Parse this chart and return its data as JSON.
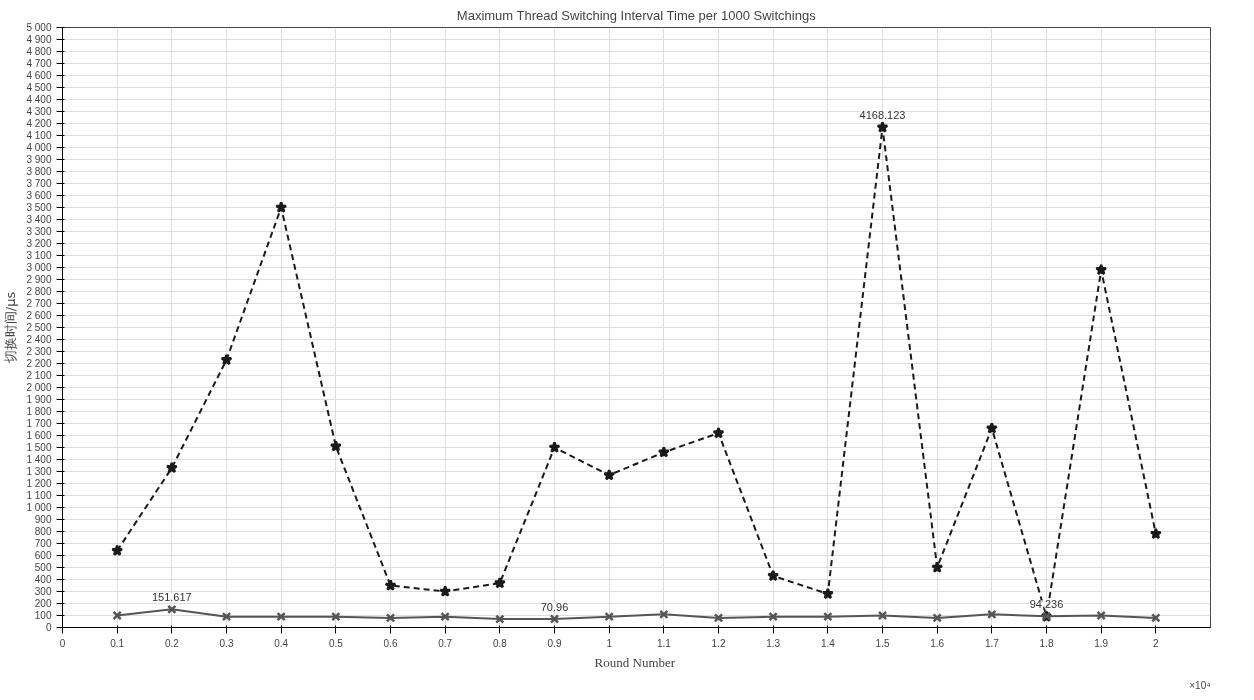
{
  "chart_data": {
    "type": "line",
    "title": "Maximum Thread Switching Interval Time per 1000 Switchings",
    "xlabel": "Round  Number",
    "ylabel": "切换时间/μs",
    "x": [
      0.1,
      0.2,
      0.3,
      0.4,
      0.5,
      0.6,
      0.7,
      0.8,
      0.9,
      1,
      1.1,
      1.2,
      1.3,
      1.4,
      1.5,
      1.6,
      1.7,
      1.8,
      1.9,
      2
    ],
    "series": [
      {
        "color": "#1a1a1a",
        "line_style": "dashed",
        "marker": "star",
        "values": [
          640,
          1330,
          2230,
          3500,
          1510,
          350,
          300,
          370,
          1500,
          1270,
          1460,
          1620,
          430,
          280,
          4168.123,
          500,
          1660,
          90,
          2980,
          780
        ],
        "value_labels": [
          null,
          null,
          null,
          null,
          null,
          null,
          null,
          null,
          null,
          null,
          null,
          null,
          null,
          null,
          "4168.123",
          null,
          null,
          null,
          null,
          null
        ]
      },
      {
        "color": "#555555",
        "line_style": "solid",
        "marker": "cross",
        "values": [
          100,
          151.617,
          90,
          90,
          90,
          80,
          90,
          70,
          70.96,
          90,
          110,
          80,
          90,
          90,
          100,
          80,
          110,
          94.236,
          100,
          80
        ],
        "value_labels": [
          null,
          "151.617",
          null,
          null,
          null,
          null,
          null,
          null,
          "70.96",
          null,
          null,
          null,
          null,
          null,
          null,
          null,
          null,
          "94.236",
          null,
          null
        ]
      }
    ],
    "xlim": [
      0,
      2.1
    ],
    "xticks": [
      0,
      0.1,
      0.2,
      0.3,
      0.4,
      0.5,
      0.6,
      0.7,
      0.8,
      0.9,
      1,
      1.1,
      1.2,
      1.3,
      1.4,
      1.5,
      1.6,
      1.7,
      1.8,
      1.9,
      2
    ],
    "annotations": [
      "×10⁴"
    ],
    "ylim": [
      0,
      5000
    ],
    "yticks": [
      0,
      100,
      200,
      300,
      400,
      500,
      600,
      700,
      800,
      900,
      {
        "value": 1000,
        "label": "1 000"
      },
      {
        "value": 1100,
        "label": "1 100"
      },
      {
        "value": 1200,
        "label": "1 200"
      },
      {
        "value": 1300,
        "label": "1 300"
      },
      {
        "value": 1400,
        "label": "1 400"
      },
      {
        "value": 1500,
        "label": "1 500"
      },
      {
        "value": 1600,
        "label": "1 600"
      },
      {
        "value": 1700,
        "label": "1 700"
      },
      {
        "value": 1800,
        "label": "1 800"
      },
      {
        "value": 1900,
        "label": "1 900"
      },
      {
        "value": 2000,
        "label": "2 000"
      },
      {
        "value": 2100,
        "label": "2 100"
      },
      {
        "value": 2200,
        "label": "2 200"
      },
      {
        "value": 2300,
        "label": "2 300"
      },
      {
        "value": 2400,
        "label": "2 400"
      },
      {
        "value": 2500,
        "label": "2 500"
      },
      {
        "value": 2600,
        "label": "2 600"
      },
      {
        "value": 2700,
        "label": "2 700"
      },
      {
        "value": 2800,
        "label": "2 800"
      },
      {
        "value": 2900,
        "label": "2 900"
      },
      {
        "value": 3000,
        "label": "3 000"
      },
      {
        "value": 3100,
        "label": "3 100"
      },
      {
        "value": 3200,
        "label": "3 200"
      },
      {
        "value": 3300,
        "label": "3 300"
      },
      {
        "value": 3400,
        "label": "3 400"
      },
      {
        "value": 3500,
        "label": "3 500"
      },
      {
        "value": 3600,
        "label": "3 600"
      },
      {
        "value": 3700,
        "label": "3 700"
      },
      {
        "value": 3800,
        "label": "3 800"
      },
      {
        "value": 3900,
        "label": "3 900"
      },
      {
        "value": 4000,
        "label": "4 000"
      },
      {
        "value": 4100,
        "label": "4 100"
      },
      {
        "value": 4200,
        "label": "4 200"
      },
      {
        "value": 4300,
        "label": "4 300"
      },
      {
        "value": 4400,
        "label": "4 400"
      },
      {
        "value": 4500,
        "label": "4 500"
      },
      {
        "value": 4600,
        "label": "4 600"
      },
      {
        "value": 4700,
        "label": "4 700"
      },
      {
        "value": 4800,
        "label": "4 800"
      },
      {
        "value": 4900,
        "label": "4 900"
      },
      {
        "value": 5000,
        "label": "5 000"
      }
    ],
    "grid": true
  }
}
